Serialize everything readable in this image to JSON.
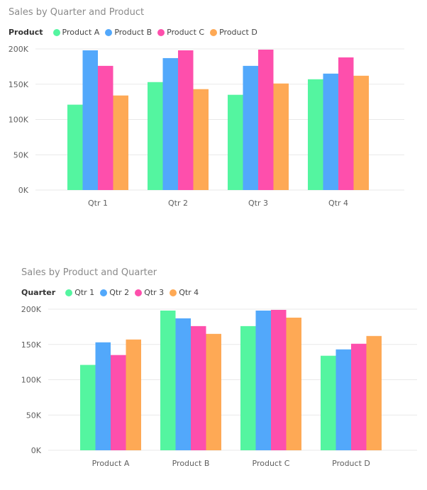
{
  "colors": {
    "green": "#54f5a0",
    "blue": "#52a8fb",
    "pink": "#fe4fac",
    "orange": "#fea955"
  },
  "chart_data": [
    {
      "type": "bar",
      "title": "Sales by Quarter and Product",
      "legend_title": "Product",
      "legend_position": "top-left",
      "categories": [
        "Qtr 1",
        "Qtr 2",
        "Qtr 3",
        "Qtr 4"
      ],
      "series": [
        {
          "name": "Product A",
          "color": "#54f5a0",
          "values": [
            121000,
            153000,
            135000,
            157000
          ]
        },
        {
          "name": "Product B",
          "color": "#52a8fb",
          "values": [
            198000,
            187000,
            176000,
            165000
          ]
        },
        {
          "name": "Product C",
          "color": "#fe4fac",
          "values": [
            176000,
            198000,
            199000,
            188000
          ]
        },
        {
          "name": "Product D",
          "color": "#fea955",
          "values": [
            134000,
            143000,
            151000,
            162000
          ]
        }
      ],
      "ylim": [
        0,
        200000
      ],
      "yticks": [
        0,
        50000,
        100000,
        150000,
        200000
      ],
      "ytick_labels": [
        "0K",
        "50K",
        "100K",
        "150K",
        "200K"
      ],
      "grid": true
    },
    {
      "type": "bar",
      "title": "Sales by Product and Quarter",
      "legend_title": "Quarter",
      "legend_position": "top-left",
      "categories": [
        "Product A",
        "Product B",
        "Product C",
        "Product D"
      ],
      "series": [
        {
          "name": "Qtr 1",
          "color": "#54f5a0",
          "values": [
            121000,
            198000,
            176000,
            134000
          ]
        },
        {
          "name": "Qtr 2",
          "color": "#52a8fb",
          "values": [
            153000,
            187000,
            198000,
            143000
          ]
        },
        {
          "name": "Qtr 3",
          "color": "#fe4fac",
          "values": [
            135000,
            176000,
            199000,
            151000
          ]
        },
        {
          "name": "Qtr 4",
          "color": "#fea955",
          "values": [
            157000,
            165000,
            188000,
            162000
          ]
        }
      ],
      "ylim": [
        0,
        200000
      ],
      "yticks": [
        0,
        50000,
        100000,
        150000,
        200000
      ],
      "ytick_labels": [
        "0K",
        "50K",
        "100K",
        "150K",
        "200K"
      ],
      "grid": true
    }
  ]
}
